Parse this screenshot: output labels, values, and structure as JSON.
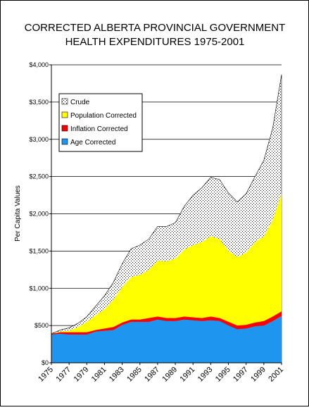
{
  "chart_data": {
    "type": "area",
    "title": [
      "CORRECTED ALBERTA PROVINCIAL GOVERNMENT",
      "HEALTH EXPENDITURES 1975-2001"
    ],
    "y_label": "Per Capita Values",
    "x": [
      1975,
      1976,
      1977,
      1978,
      1979,
      1980,
      1981,
      1982,
      1983,
      1984,
      1985,
      1986,
      1987,
      1988,
      1989,
      1990,
      1991,
      1992,
      1993,
      1994,
      1995,
      1996,
      1997,
      1998,
      1999,
      2000,
      2001
    ],
    "xlim": [
      1975,
      2001
    ],
    "xticks": [
      1975,
      1977,
      1979,
      1981,
      1983,
      1985,
      1987,
      1989,
      1991,
      1993,
      1995,
      1997,
      1999,
      2001
    ],
    "ylim": [
      0,
      4000
    ],
    "yticks": [
      {
        "value": 0,
        "label": "$0"
      },
      {
        "value": 500,
        "label": "$500"
      },
      {
        "value": 1000,
        "label": "$1,000"
      },
      {
        "value": 1500,
        "label": "$1,500"
      },
      {
        "value": 2000,
        "label": "$2,000"
      },
      {
        "value": 2500,
        "label": "$2,500"
      },
      {
        "value": 3000,
        "label": "$3,000"
      },
      {
        "value": 3500,
        "label": "$3,500"
      },
      {
        "value": 4000,
        "label": "$4,000"
      }
    ],
    "grid": true,
    "legend": "top-left",
    "series": [
      {
        "name": "Crude",
        "color": "#ffffff",
        "values": [
          390,
          440,
          470,
          530,
          620,
          760,
          900,
          1080,
          1330,
          1530,
          1580,
          1660,
          1830,
          1830,
          1880,
          2100,
          2250,
          2350,
          2490,
          2460,
          2280,
          2160,
          2270,
          2500,
          2720,
          3150,
          3870
        ]
      },
      {
        "name": "Population Corrected",
        "color": "#ffff00",
        "values": [
          390,
          420,
          430,
          480,
          550,
          640,
          720,
          850,
          1020,
          1150,
          1180,
          1250,
          1370,
          1360,
          1400,
          1520,
          1580,
          1620,
          1700,
          1660,
          1500,
          1420,
          1480,
          1620,
          1700,
          1920,
          2280
        ]
      },
      {
        "name": "Inflation Corrected",
        "color": "#ff0000",
        "values": [
          390,
          410,
          410,
          410,
          410,
          440,
          460,
          480,
          540,
          580,
          580,
          600,
          620,
          600,
          600,
          620,
          610,
          600,
          620,
          600,
          550,
          500,
          510,
          540,
          560,
          620,
          690
        ]
      },
      {
        "name": "Age Corrected",
        "color": "#1e96f0",
        "values": [
          380,
          390,
          380,
          380,
          380,
          420,
          430,
          440,
          510,
          550,
          550,
          550,
          580,
          560,
          560,
          580,
          570,
          560,
          570,
          560,
          500,
          450,
          460,
          490,
          500,
          560,
          630
        ]
      }
    ]
  }
}
